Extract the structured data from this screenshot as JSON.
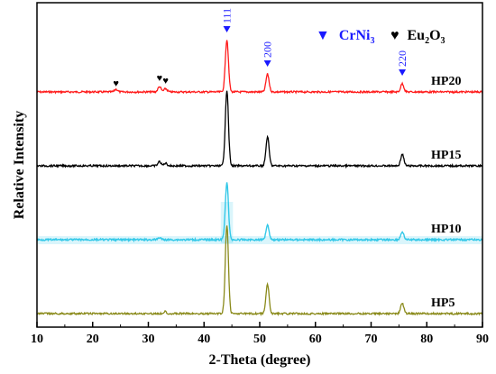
{
  "chart_data": {
    "type": "line",
    "title": "",
    "xlabel": "2-Theta (degree)",
    "ylabel": "Relative Intensity",
    "xlim": [
      10,
      90
    ],
    "xticks": [
      10,
      20,
      30,
      40,
      50,
      60,
      70,
      80,
      90
    ],
    "grid": false,
    "legend": {
      "placement": "top-right",
      "entries": [
        {
          "marker": "▼",
          "name": "CrNi",
          "sub": "3",
          "color": "#1a1aff"
        },
        {
          "marker": "♥",
          "name": "Eu",
          "sub": "2",
          "name2": "O",
          "sub2": "3",
          "color": "#000000"
        }
      ]
    },
    "peak_labels": [
      {
        "x": 44.1,
        "text": "111",
        "color": "#1a1aff"
      },
      {
        "x": 51.4,
        "text": "200",
        "color": "#1a1aff"
      },
      {
        "x": 75.6,
        "text": "220",
        "color": "#1a1aff"
      }
    ],
    "eu_markers": [
      24.2,
      32.0,
      33.1
    ],
    "series": [
      {
        "name": "HP20",
        "color": "#ff1a1a",
        "baseline": 3.0,
        "peaks": [
          [
            24.2,
            0.05
          ],
          [
            32.0,
            0.1
          ],
          [
            33.1,
            0.06
          ],
          [
            44.1,
            1.0
          ],
          [
            51.4,
            0.34
          ],
          [
            75.6,
            0.16
          ]
        ]
      },
      {
        "name": "HP15",
        "color": "#000000",
        "baseline": 2.0,
        "peaks": [
          [
            32.0,
            0.08
          ],
          [
            33.1,
            0.05
          ],
          [
            44.1,
            1.45
          ],
          [
            51.4,
            0.55
          ],
          [
            75.6,
            0.22
          ]
        ]
      },
      {
        "name": "HP10",
        "color": "#33c8e8",
        "baseline": 1.0,
        "peaks": [
          [
            32.0,
            0.04
          ],
          [
            44.1,
            1.1
          ],
          [
            51.4,
            0.28
          ],
          [
            75.6,
            0.15
          ]
        ]
      },
      {
        "name": "HP5",
        "color": "#8a8a1a",
        "baseline": 0.0,
        "peaks": [
          [
            33.0,
            0.04
          ],
          [
            44.1,
            1.7
          ],
          [
            51.4,
            0.56
          ],
          [
            75.6,
            0.2
          ]
        ]
      }
    ]
  }
}
